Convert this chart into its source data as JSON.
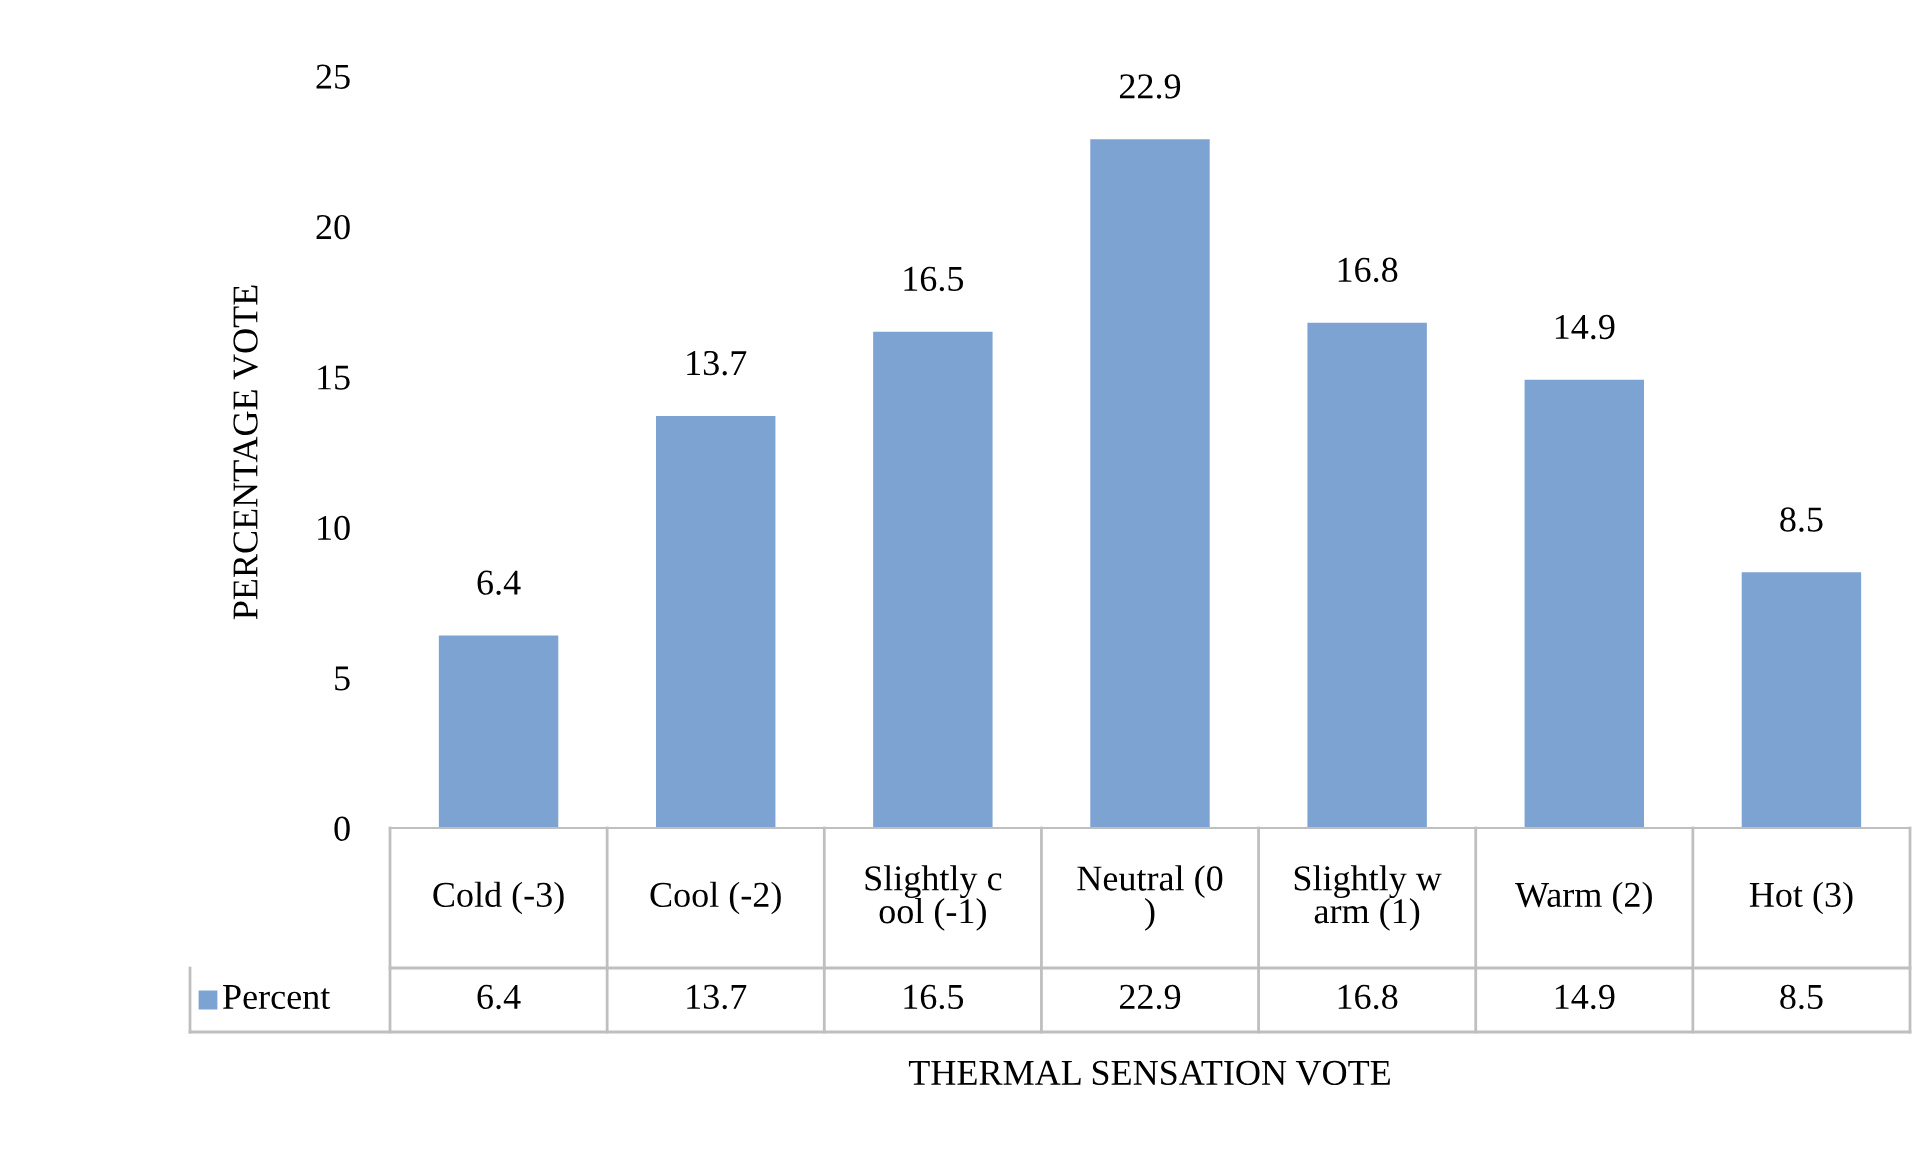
{
  "chart_data": {
    "type": "bar",
    "xlabel": "THERMAL SENSATION VOTE",
    "ylabel": "PERCENTAGE VOTE",
    "categories": [
      "Cold (-3)",
      "Cool (-2)",
      "Slightly cool (-1)",
      "Neutral (0)",
      "Slightly warm (1)",
      "Warm (2)",
      "Hot (3)"
    ],
    "series": [
      {
        "name": "Percent",
        "color": "#7da3d3",
        "values": [
          6.4,
          13.7,
          16.5,
          22.9,
          16.8,
          14.9,
          8.5
        ]
      }
    ],
    "annotations": [
      {
        "text": "6.4",
        "x": "Cold (-3)",
        "y": 6.4
      },
      {
        "text": "13.7",
        "x": "Cool (-2)",
        "y": 13.7
      },
      {
        "text": "16.5",
        "x": "Slightly cool (-1)",
        "y": 16.5
      },
      {
        "text": "22.9",
        "x": "Neutral (0)",
        "y": 22.9
      },
      {
        "text": "16.8",
        "x": "Slightly warm (1)",
        "y": 16.8
      },
      {
        "text": "14.9",
        "x": "Warm (2)",
        "y": 14.9
      },
      {
        "text": "8.5",
        "x": "Hot (3)",
        "y": 8.5
      }
    ],
    "ylim": [
      0,
      25
    ],
    "yticks": [
      0,
      5,
      10,
      15,
      20,
      25
    ],
    "data_labels": true,
    "legend": "bottom",
    "grid": false
  }
}
